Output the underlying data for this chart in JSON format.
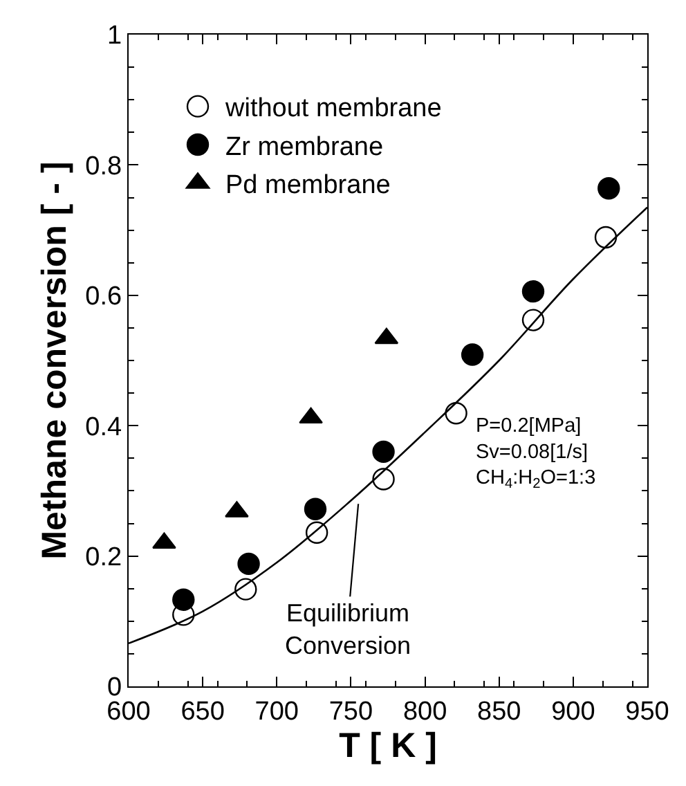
{
  "chart_data": {
    "type": "scatter",
    "xlabel": "T [ K ]",
    "ylabel": "Methane conversion [ - ]",
    "xlim": [
      600,
      950
    ],
    "xticks": [
      600,
      650,
      700,
      750,
      800,
      850,
      900,
      950
    ],
    "ylim": [
      0,
      1
    ],
    "yticks": [
      0,
      0.2,
      0.4,
      0.6,
      0.8,
      1
    ],
    "legend": "top left",
    "series": [
      {
        "name": "without membrane",
        "color": "#ffffff",
        "marker": "circle",
        "x": [
          637,
          679,
          727,
          772,
          821,
          873,
          922
        ],
        "values": [
          0.11,
          0.149,
          0.236,
          0.318,
          0.419,
          0.562,
          0.689
        ]
      },
      {
        "name": "Zr membrane",
        "color": "#000000",
        "marker": "circle",
        "x": [
          637,
          681,
          726,
          772,
          832,
          873,
          924
        ],
        "values": [
          0.133,
          0.188,
          0.272,
          0.36,
          0.509,
          0.606,
          0.764
        ]
      },
      {
        "name": "Pd membrane",
        "color": "#000000",
        "marker": "triangle",
        "x": [
          624,
          673,
          723,
          774
        ],
        "values": [
          0.22,
          0.268,
          0.412,
          0.534
        ]
      },
      {
        "type": "line",
        "color": "#000000",
        "line_style": "solid",
        "x": [
          600,
          650,
          700,
          750,
          800,
          850,
          900,
          950
        ],
        "values": [
          0.066,
          0.115,
          0.19,
          0.285,
          0.39,
          0.5,
          0.625,
          0.735
        ]
      }
    ],
    "annotations": [
      {
        "text": "Equilibrium\nConversion",
        "x": 755,
        "y": 0.28
      },
      "P=0.2[MPa]\nSv=0.08[1/s]\nCH$_{4}$:H$_{2}$O=1:3"
    ]
  }
}
